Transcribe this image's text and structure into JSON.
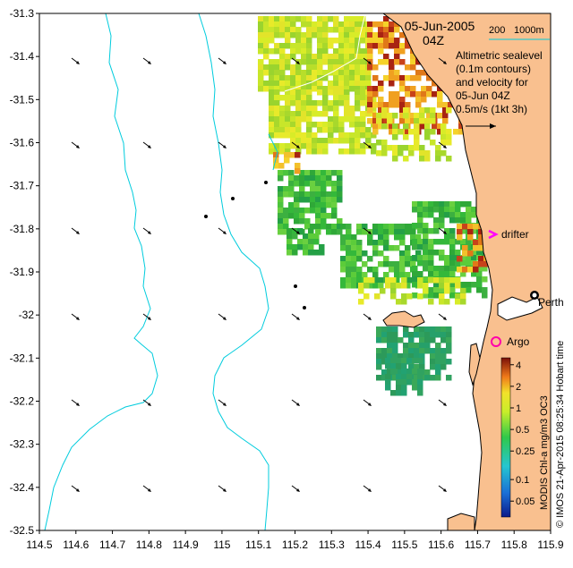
{
  "header": {
    "date": "05-Jun-2005",
    "time": "04Z",
    "depth_labels": [
      "200",
      "1000m"
    ]
  },
  "legend": {
    "lines": [
      "Altimetric sealevel",
      "(0.1m contours)",
      "and velocity for",
      "05-Jun 04Z"
    ],
    "scale_text": "0.5m/s (1kt 3h)"
  },
  "places": {
    "perth": "Perth",
    "argo": "Argo",
    "drifter": "drifter"
  },
  "colorbar": {
    "ticks": [
      "4",
      "2",
      "1",
      "0.5",
      "0.25",
      "0.1",
      "0.05"
    ],
    "tick_values": [
      4,
      2,
      1,
      0.5,
      0.25,
      0.1,
      0.05
    ],
    "title": "MODIS Chl-a mg/m3 OC3"
  },
  "credit": "© IMOS 21-Apr-2015 08:25:34 Hobart time",
  "axes": {
    "x_ticks": [
      "114.5",
      "114.6",
      "114.7",
      "114.8",
      "114.9",
      "115",
      "115.1",
      "115.2",
      "115.3",
      "115.4",
      "115.5",
      "115.6",
      "115.7",
      "115.8",
      "115.9"
    ],
    "x_values": [
      114.5,
      114.6,
      114.7,
      114.8,
      114.9,
      115.0,
      115.1,
      115.2,
      115.3,
      115.4,
      115.5,
      115.6,
      115.7,
      115.8,
      115.9
    ],
    "y_ticks": [
      "-31.3",
      "-31.4",
      "-31.5",
      "-31.6",
      "-31.7",
      "-31.8",
      "-31.9",
      "-32",
      "-32.1",
      "-32.2",
      "-32.3",
      "-32.4",
      "-32.5"
    ],
    "y_values": [
      -31.3,
      -31.4,
      -31.5,
      -31.6,
      -31.7,
      -31.8,
      -31.9,
      -32.0,
      -32.1,
      -32.2,
      -32.3,
      -32.4,
      -32.5
    ],
    "xlim": [
      114.5,
      115.9
    ],
    "ylim": [
      -32.5,
      -31.3
    ]
  },
  "colors": {
    "land": "#f9c08f",
    "bathymetry": "#00ccdd",
    "drifter_marker": "#ff00ff",
    "argo_marker": "#ff00aa"
  }
}
